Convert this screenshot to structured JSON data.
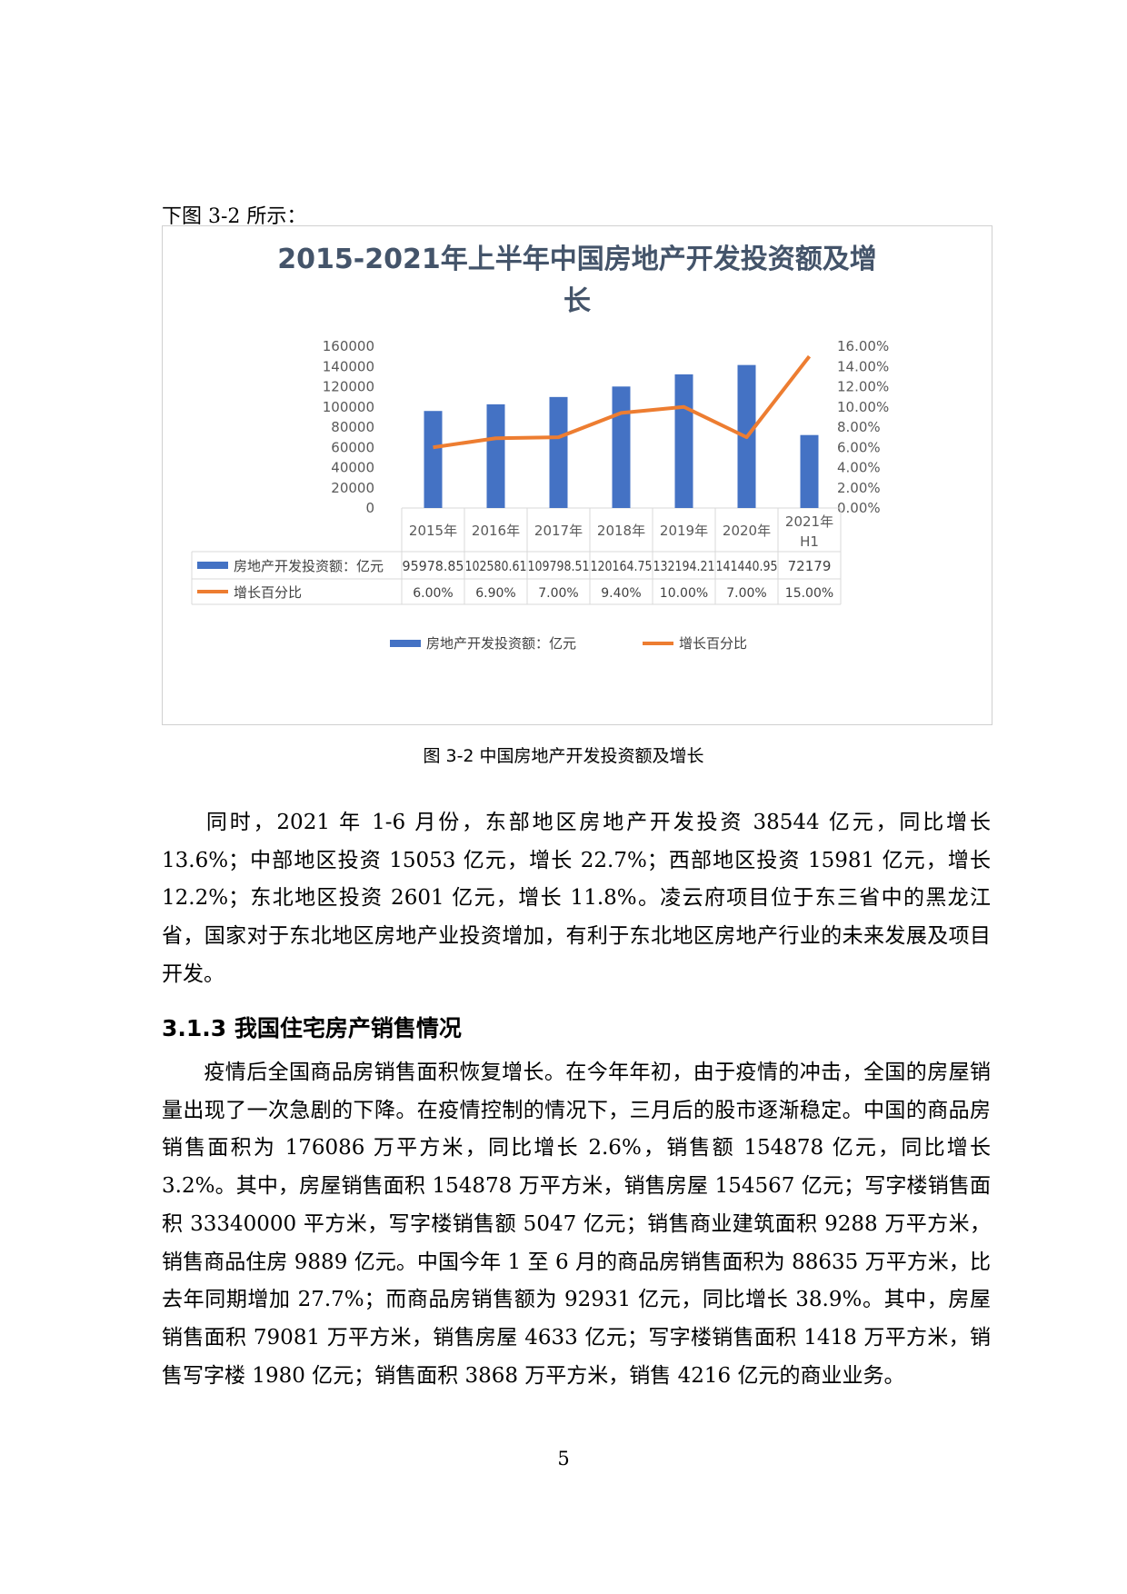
{
  "lead_text": "下图 3-2 所示：",
  "caption": "图 3-2  中国房地产开发投资额及增长",
  "paragraph1": "同时，2021 年 1-6 月份，东部地区房地产开发投资 38544 亿元，同比增长 13.6%；中部地区投资 15053 亿元，增长 22.7%；西部地区投资 15981 亿元，增长 12.2%；东北地区投资 2601 亿元，增长 11.8%。凌云府项目位于东三省中的黑龙江省，国家对于东北地区房地产业投资增加，有利于东北地区房地产行业的未来发展及项目开发。",
  "heading": "3.1.3 我国住宅房产销售情况",
  "paragraph2": "疫情后全国商品房销售面积恢复增长。在今年年初，由于疫情的冲击，全国的房屋销量出现了一次急剧的下降。在疫情控制的情况下，三月后的股市逐渐稳定。中国的商品房销售面积为 176086 万平方米，同比增长 2.6%，销售额 154878 亿元，同比增长 3.2%。其中，房屋销售面积 154878 万平方米，销售房屋 154567 亿元；写字楼销售面积 33340000 平方米，写字楼销售额 5047 亿元；销售商业建筑面积 9288 万平方米，销售商品住房 9889 亿元。中国今年 1 至 6 月的商品房销售面积为 88635 万平方米，比去年同期增加 27.7%；而商品房销售额为 92931 亿元，同比增长 38.9%。其中，房屋销售面积 79081 万平方米，销售房屋 4633 亿元；写字楼销售面积 1418 万平方米，销售写字楼 1980 亿元；销售面积 3868 万平方米，销售 4216 亿元的商业业务。",
  "page_number": "5",
  "chart_data": {
    "type": "bar",
    "title_line1": "2015-2021年上半年中国房地产开发投资额及增",
    "title_line2": "长",
    "categories": [
      "2015年",
      "2016年",
      "2017年",
      "2018年",
      "2019年",
      "2020年",
      "2021年 H1"
    ],
    "series": [
      {
        "name": "房地产开发投资额：亿元",
        "type": "bar",
        "axis": "left",
        "values": [
          95978.85,
          102580.61,
          109798.51,
          120164.75,
          132194.21,
          141440.95,
          72179
        ],
        "labels": [
          "95978.85",
          "102580.61",
          "109798.51",
          "120164.75",
          "132194.21",
          "141440.95",
          "72179"
        ],
        "color": "#4472c4"
      },
      {
        "name": "增长百分比",
        "type": "line",
        "axis": "right",
        "values": [
          6.0,
          6.9,
          7.0,
          9.4,
          10.0,
          7.0,
          15.0
        ],
        "labels": [
          "6.00%",
          "6.90%",
          "7.00%",
          "9.40%",
          "10.00%",
          "7.00%",
          "15.00%"
        ],
        "color": "#ed7d31"
      }
    ],
    "ylim_left": [
      0,
      160000
    ],
    "ylim_right": [
      0,
      16
    ],
    "left_ticks": [
      "0",
      "20000",
      "40000",
      "60000",
      "80000",
      "100000",
      "120000",
      "140000",
      "160000"
    ],
    "right_ticks": [
      "0.00%",
      "2.00%",
      "4.00%",
      "6.00%",
      "8.00%",
      "10.00%",
      "12.00%",
      "14.00%",
      "16.00%"
    ],
    "legend": "bottom",
    "data_table": true,
    "grid": false
  }
}
